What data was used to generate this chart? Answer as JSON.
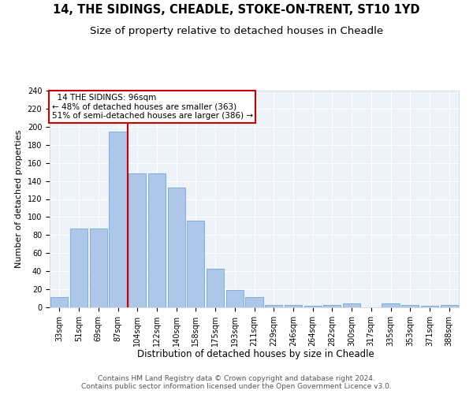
{
  "title1": "14, THE SIDINGS, CHEADLE, STOKE-ON-TRENT, ST10 1YD",
  "title2": "Size of property relative to detached houses in Cheadle",
  "xlabel": "Distribution of detached houses by size in Cheadle",
  "ylabel": "Number of detached properties",
  "categories": [
    "33sqm",
    "51sqm",
    "69sqm",
    "87sqm",
    "104sqm",
    "122sqm",
    "140sqm",
    "158sqm",
    "175sqm",
    "193sqm",
    "211sqm",
    "229sqm",
    "246sqm",
    "264sqm",
    "282sqm",
    "300sqm",
    "317sqm",
    "335sqm",
    "353sqm",
    "371sqm",
    "388sqm"
  ],
  "values": [
    11,
    87,
    87,
    195,
    148,
    148,
    133,
    96,
    43,
    19,
    11,
    3,
    3,
    2,
    3,
    4,
    0,
    4,
    3,
    2,
    3
  ],
  "bar_color": "#aec6e8",
  "bar_edge_color": "#5a9fd4",
  "annotation_label": "14 THE SIDINGS: 96sqm",
  "annotation_text1": "← 48% of detached houses are smaller (363)",
  "annotation_text2": "51% of semi-detached houses are larger (386) →",
  "annotation_box_color": "#ffffff",
  "annotation_box_edge_color": "#cc0000",
  "vline_color": "#cc0000",
  "vline_x_idx": 3.5,
  "ylim": [
    0,
    240
  ],
  "yticks": [
    0,
    20,
    40,
    60,
    80,
    100,
    120,
    140,
    160,
    180,
    200,
    220,
    240
  ],
  "bg_color": "#eef2f9",
  "grid_color": "#ffffff",
  "title1_fontsize": 10.5,
  "title2_fontsize": 9.5,
  "xlabel_fontsize": 8.5,
  "ylabel_fontsize": 8,
  "tick_fontsize": 7,
  "annot_fontsize": 7.5,
  "footer_fontsize": 6.5,
  "footer_text": "Contains HM Land Registry data © Crown copyright and database right 2024.\nContains public sector information licensed under the Open Government Licence v3.0."
}
